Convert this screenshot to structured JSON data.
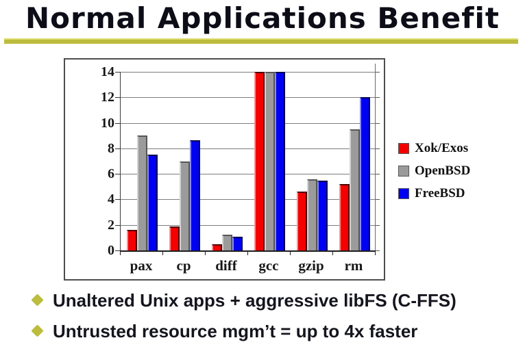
{
  "slide": {
    "title": "Normal Applications Benefit",
    "title_color": "#0d0d18",
    "accent_color": "#bcbc3e",
    "bullets": [
      {
        "text": "Unaltered Unix apps + aggressive libFS (C-FFS)"
      },
      {
        "text": "Untrusted resource mgm’t = up to 4x faster"
      }
    ]
  },
  "chart_data": {
    "type": "bar",
    "title": "",
    "xlabel": "",
    "ylabel": "",
    "categories": [
      "pax",
      "cp",
      "diff",
      "gcc",
      "gzip",
      "rm"
    ],
    "series": [
      {
        "name": "Xok/Exos",
        "color": "#f40000",
        "edge_light": "#ff9090",
        "edge_dark": "#4a0000",
        "values": [
          1.6,
          1.9,
          0.5,
          14,
          4.6,
          5.2
        ]
      },
      {
        "name": "OpenBSD",
        "color": "#9b9b9b",
        "edge_light": "#d2d2d2",
        "edge_dark": "#565656",
        "values": [
          9.0,
          7.0,
          1.25,
          14,
          5.6,
          9.5
        ]
      },
      {
        "name": "FreeBSD",
        "color": "#0000f2",
        "edge_light": "#8a8aff",
        "edge_dark": "#000050",
        "values": [
          7.5,
          8.65,
          1.05,
          14,
          5.45,
          12.0
        ]
      }
    ],
    "ylim": [
      0,
      14
    ],
    "ytick_step": 2,
    "grid": true,
    "gridline_color": "#7d7d7d",
    "legend_position": "right"
  }
}
